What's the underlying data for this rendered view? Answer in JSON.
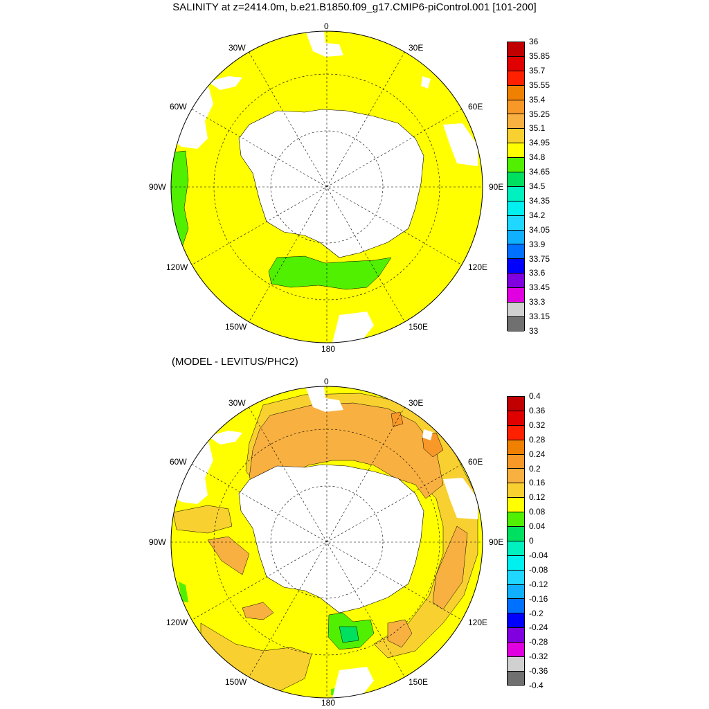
{
  "title": "SALINITY at z=2414.0m, b.e21.B1850.f09_g17.CMIP6-piControl.001 [101-200]",
  "subtitle": "(MODEL - LEVITUS/PHC2)",
  "longitude_labels": {
    "n": "0",
    "e30": "30E",
    "e60": "60E",
    "e90": "90E",
    "e120": "120E",
    "e150": "150E",
    "s": "180",
    "w150": "150W",
    "w120": "120W",
    "w90": "90W",
    "w60": "60W",
    "w30": "30W"
  },
  "colorbar_top": {
    "labels": [
      "36",
      "35.85",
      "35.7",
      "35.55",
      "35.4",
      "35.25",
      "35.1",
      "34.95",
      "34.8",
      "34.65",
      "34.5",
      "34.35",
      "34.2",
      "34.05",
      "33.9",
      "33.75",
      "33.6",
      "33.45",
      "33.3",
      "33.15",
      "33"
    ],
    "colors": [
      "#c00000",
      "#e00000",
      "#ff2000",
      "#f08000",
      "#f89828",
      "#f8b040",
      "#f8d030",
      "#ffff00",
      "#50f000",
      "#00e060",
      "#00f0c0",
      "#00f0f0",
      "#20d8ff",
      "#10b0ff",
      "#0070ff",
      "#0000ff",
      "#8000e0",
      "#e000e0",
      "#d0d0d0",
      "#707070"
    ]
  },
  "colorbar_bottom": {
    "labels": [
      "0.4",
      "0.36",
      "0.32",
      "0.28",
      "0.24",
      "0.2",
      "0.16",
      "0.12",
      "0.08",
      "0.04",
      "0",
      "-0.04",
      "-0.08",
      "-0.12",
      "-0.16",
      "-0.2",
      "-0.24",
      "-0.28",
      "-0.32",
      "-0.36",
      "-0.4"
    ],
    "colors": [
      "#c00000",
      "#e00000",
      "#ff2000",
      "#f08000",
      "#f89828",
      "#f8b040",
      "#f8d030",
      "#ffff00",
      "#50f000",
      "#00e060",
      "#00f0c0",
      "#00f0f0",
      "#20d8ff",
      "#10b0ff",
      "#0070ff",
      "#0000ff",
      "#8000e0",
      "#e000e0",
      "#d0d0d0",
      "#707070"
    ]
  }
}
